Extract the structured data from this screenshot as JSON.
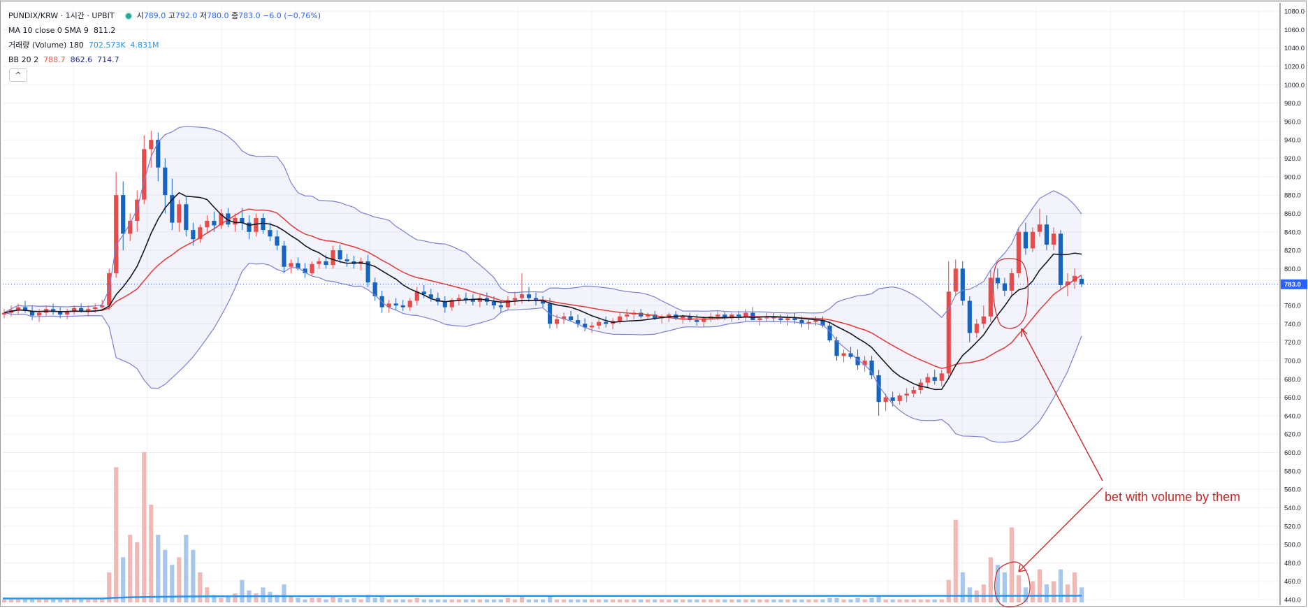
{
  "header": {
    "symbol": "PUNDIX/KRW · 1시간 · UPBIT",
    "open_label": "시",
    "open": "789.0",
    "high_label": "고",
    "high": "792.0",
    "low_label": "저",
    "low": "780.0",
    "close_label": "종",
    "close": "783.0",
    "change": "−6.0 (−0.76%)"
  },
  "indicators": {
    "ma": {
      "label": "MA 10 close 0 SMA 9",
      "value": "811.2"
    },
    "volume": {
      "label": "거래량 (Volume) 180",
      "v1": "702.573K",
      "v2": "4.831M"
    },
    "bb": {
      "label": "BB 20 2",
      "basis": "788.7",
      "upper": "862.6",
      "lower": "714.7"
    }
  },
  "collapse_symbol": "^",
  "annotation": {
    "text": "bet with volume by them"
  },
  "price_tag": "783.0",
  "colors": {
    "up": "#e74c4c",
    "down": "#1565c0",
    "ma": "#131722",
    "bb_basis": "#e53935",
    "bb_band": "#7b7fd4",
    "vol_up": "#f2b8b5",
    "vol_down": "#a7c7ef",
    "vol_ma": "#2196f3",
    "annotation": "#c62828",
    "price_tag": "#2962ff"
  },
  "chart_data": {
    "type": "candlestick",
    "y_axis_ticks": [
      "1080.0",
      "1060.0",
      "1040.0",
      "1020.0",
      "1000.0",
      "980.0",
      "960.0",
      "940.0",
      "920.0",
      "900.0",
      "880.0",
      "860.0",
      "840.0",
      "820.0",
      "800.0",
      "780.0",
      "760.0",
      "740.0",
      "720.0",
      "700.0",
      "680.0",
      "660.0",
      "640.0",
      "620.0",
      "600.0",
      "580.0",
      "560.0",
      "540.0",
      "520.0",
      "500.0",
      "480.0",
      "460.0",
      "440.0"
    ],
    "ylim": [
      440,
      1080
    ],
    "grid": true,
    "price_line": 783.0,
    "candles_ohlc": [
      [
        750,
        756,
        746,
        752
      ],
      [
        752,
        760,
        748,
        755
      ],
      [
        755,
        762,
        750,
        758
      ],
      [
        758,
        765,
        752,
        754
      ],
      [
        754,
        760,
        744,
        749
      ],
      [
        749,
        756,
        742,
        752
      ],
      [
        752,
        760,
        748,
        756
      ],
      [
        756,
        762,
        750,
        753
      ],
      [
        753,
        758,
        746,
        750
      ],
      [
        750,
        756,
        745,
        754
      ],
      [
        754,
        760,
        750,
        757
      ],
      [
        757,
        762,
        752,
        754
      ],
      [
        754,
        760,
        748,
        756
      ],
      [
        756,
        762,
        752,
        758
      ],
      [
        758,
        766,
        754,
        760
      ],
      [
        760,
        800,
        755,
        795
      ],
      [
        795,
        905,
        790,
        880
      ],
      [
        880,
        895,
        820,
        838
      ],
      [
        838,
        860,
        830,
        852
      ],
      [
        852,
        885,
        840,
        875
      ],
      [
        875,
        945,
        870,
        930
      ],
      [
        930,
        950,
        910,
        940
      ],
      [
        940,
        948,
        895,
        910
      ],
      [
        910,
        920,
        860,
        880
      ],
      [
        880,
        898,
        842,
        850
      ],
      [
        850,
        875,
        840,
        870
      ],
      [
        870,
        878,
        835,
        842
      ],
      [
        842,
        850,
        825,
        832
      ],
      [
        832,
        848,
        828,
        845
      ],
      [
        845,
        858,
        838,
        852
      ],
      [
        852,
        862,
        840,
        847
      ],
      [
        847,
        865,
        843,
        860
      ],
      [
        860,
        866,
        845,
        848
      ],
      [
        848,
        860,
        840,
        855
      ],
      [
        855,
        866,
        842,
        850
      ],
      [
        850,
        858,
        832,
        840
      ],
      [
        840,
        860,
        835,
        855
      ],
      [
        855,
        860,
        838,
        842
      ],
      [
        842,
        850,
        830,
        835
      ],
      [
        835,
        842,
        820,
        825
      ],
      [
        825,
        830,
        795,
        802
      ],
      [
        802,
        810,
        795,
        806
      ],
      [
        806,
        812,
        798,
        800
      ],
      [
        800,
        806,
        790,
        795
      ],
      [
        795,
        808,
        792,
        805
      ],
      [
        805,
        812,
        800,
        808
      ],
      [
        808,
        815,
        800,
        804
      ],
      [
        804,
        825,
        800,
        820
      ],
      [
        820,
        826,
        806,
        810
      ],
      [
        810,
        816,
        802,
        808
      ],
      [
        808,
        814,
        800,
        805
      ],
      [
        805,
        812,
        798,
        808
      ],
      [
        808,
        815,
        780,
        785
      ],
      [
        785,
        790,
        765,
        770
      ],
      [
        770,
        776,
        752,
        758
      ],
      [
        758,
        766,
        752,
        762
      ],
      [
        762,
        768,
        755,
        760
      ],
      [
        760,
        766,
        754,
        758
      ],
      [
        758,
        768,
        754,
        765
      ],
      [
        765,
        780,
        760,
        775
      ],
      [
        775,
        782,
        768,
        772
      ],
      [
        772,
        778,
        764,
        768
      ],
      [
        768,
        774,
        760,
        764
      ],
      [
        764,
        770,
        752,
        758
      ],
      [
        758,
        768,
        754,
        766
      ],
      [
        766,
        772,
        760,
        768
      ],
      [
        768,
        774,
        762,
        766
      ],
      [
        766,
        772,
        760,
        764
      ],
      [
        764,
        772,
        758,
        768
      ],
      [
        768,
        774,
        760,
        764
      ],
      [
        764,
        770,
        756,
        760
      ],
      [
        760,
        766,
        752,
        758
      ],
      [
        758,
        770,
        755,
        766
      ],
      [
        766,
        775,
        760,
        768
      ],
      [
        768,
        795,
        762,
        772
      ],
      [
        772,
        780,
        764,
        768
      ],
      [
        768,
        774,
        760,
        766
      ],
      [
        766,
        770,
        758,
        762
      ],
      [
        762,
        768,
        735,
        740
      ],
      [
        740,
        750,
        735,
        745
      ],
      [
        745,
        752,
        740,
        748
      ],
      [
        748,
        754,
        742,
        744
      ],
      [
        744,
        750,
        736,
        740
      ],
      [
        740,
        746,
        732,
        736
      ],
      [
        736,
        742,
        730,
        738
      ],
      [
        738,
        745,
        734,
        742
      ],
      [
        742,
        748,
        736,
        740
      ],
      [
        740,
        746,
        734,
        743
      ],
      [
        743,
        752,
        740,
        748
      ],
      [
        748,
        756,
        744,
        750
      ],
      [
        750,
        755,
        745,
        752
      ],
      [
        752,
        756,
        746,
        748
      ],
      [
        748,
        752,
        744,
        750
      ],
      [
        750,
        754,
        744,
        746
      ],
      [
        746,
        750,
        740,
        748
      ],
      [
        748,
        752,
        742,
        750
      ],
      [
        750,
        754,
        744,
        746
      ],
      [
        746,
        750,
        740,
        748
      ],
      [
        748,
        752,
        742,
        744
      ],
      [
        744,
        750,
        738,
        742
      ],
      [
        742,
        748,
        736,
        746
      ],
      [
        746,
        752,
        742,
        748
      ],
      [
        748,
        754,
        744,
        750
      ],
      [
        750,
        754,
        744,
        746
      ],
      [
        746,
        752,
        742,
        750
      ],
      [
        750,
        754,
        744,
        748
      ],
      [
        748,
        756,
        742,
        752
      ],
      [
        752,
        758,
        746,
        744
      ],
      [
        744,
        748,
        738,
        746
      ],
      [
        746,
        752,
        742,
        748
      ],
      [
        748,
        752,
        742,
        746
      ],
      [
        746,
        750,
        740,
        744
      ],
      [
        744,
        750,
        738,
        746
      ],
      [
        746,
        752,
        740,
        744
      ],
      [
        744,
        748,
        736,
        740
      ],
      [
        740,
        746,
        734,
        742
      ],
      [
        742,
        748,
        738,
        744
      ],
      [
        744,
        748,
        736,
        738
      ],
      [
        738,
        742,
        720,
        722
      ],
      [
        722,
        726,
        700,
        705
      ],
      [
        705,
        712,
        698,
        708
      ],
      [
        708,
        715,
        702,
        704
      ],
      [
        704,
        712,
        690,
        695
      ],
      [
        695,
        705,
        688,
        700
      ],
      [
        700,
        705,
        680,
        684
      ],
      [
        684,
        690,
        640,
        655
      ],
      [
        655,
        664,
        645,
        660
      ],
      [
        660,
        666,
        650,
        656
      ],
      [
        656,
        664,
        652,
        662
      ],
      [
        662,
        670,
        655,
        664
      ],
      [
        664,
        672,
        660,
        668
      ],
      [
        668,
        680,
        664,
        676
      ],
      [
        676,
        686,
        670,
        682
      ],
      [
        682,
        690,
        674,
        678
      ],
      [
        678,
        690,
        672,
        686
      ],
      [
        686,
        808,
        680,
        775
      ],
      [
        775,
        810,
        770,
        800
      ],
      [
        800,
        808,
        760,
        765
      ],
      [
        765,
        770,
        720,
        730
      ],
      [
        730,
        745,
        725,
        740
      ],
      [
        740,
        760,
        735,
        748
      ],
      [
        748,
        798,
        742,
        790
      ],
      [
        790,
        800,
        778,
        784
      ],
      [
        784,
        790,
        770,
        776
      ],
      [
        776,
        800,
        770,
        795
      ],
      [
        795,
        845,
        790,
        840
      ],
      [
        840,
        850,
        815,
        822
      ],
      [
        822,
        845,
        818,
        840
      ],
      [
        840,
        865,
        835,
        848
      ],
      [
        848,
        858,
        820,
        826
      ],
      [
        826,
        845,
        820,
        838
      ],
      [
        838,
        842,
        778,
        782
      ],
      [
        782,
        795,
        770,
        786
      ],
      [
        786,
        800,
        778,
        792
      ],
      [
        789,
        792,
        780,
        783
      ]
    ],
    "volume_relative": [
      0.02,
      0.02,
      0.02,
      0.02,
      0.02,
      0.02,
      0.02,
      0.02,
      0.02,
      0.02,
      0.02,
      0.02,
      0.02,
      0.02,
      0.02,
      0.2,
      0.9,
      0.3,
      0.45,
      0.4,
      1.0,
      0.65,
      0.45,
      0.35,
      0.25,
      0.3,
      0.45,
      0.35,
      0.2,
      0.1,
      0.05,
      0.03,
      0.04,
      0.06,
      0.15,
      0.08,
      0.06,
      0.1,
      0.07,
      0.05,
      0.12,
      0.04,
      0.03,
      0.02,
      0.03,
      0.03,
      0.02,
      0.04,
      0.03,
      0.02,
      0.03,
      0.02,
      0.05,
      0.03,
      0.04,
      0.02,
      0.02,
      0.02,
      0.02,
      0.03,
      0.02,
      0.02,
      0.02,
      0.02,
      0.02,
      0.02,
      0.02,
      0.02,
      0.02,
      0.02,
      0.02,
      0.02,
      0.03,
      0.02,
      0.04,
      0.02,
      0.02,
      0.02,
      0.04,
      0.02,
      0.02,
      0.02,
      0.02,
      0.02,
      0.02,
      0.02,
      0.02,
      0.02,
      0.02,
      0.02,
      0.02,
      0.02,
      0.02,
      0.02,
      0.02,
      0.02,
      0.02,
      0.02,
      0.02,
      0.02,
      0.02,
      0.02,
      0.02,
      0.02,
      0.02,
      0.02,
      0.02,
      0.02,
      0.02,
      0.02,
      0.02,
      0.02,
      0.02,
      0.02,
      0.02,
      0.02,
      0.02,
      0.02,
      0.03,
      0.03,
      0.02,
      0.02,
      0.03,
      0.02,
      0.03,
      0.04,
      0.02,
      0.02,
      0.02,
      0.02,
      0.02,
      0.02,
      0.02,
      0.02,
      0.02,
      0.15,
      0.55,
      0.2,
      0.1,
      0.08,
      0.12,
      0.3,
      0.25,
      0.2,
      0.5,
      0.18,
      0.1,
      0.14,
      0.22,
      0.12,
      0.14,
      0.22,
      0.12,
      0.2,
      0.1
    ],
    "volume_ma_relative": 0.04
  }
}
